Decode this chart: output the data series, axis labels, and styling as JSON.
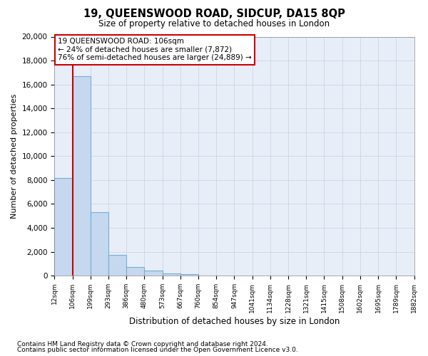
{
  "title1": "19, QUEENSWOOD ROAD, SIDCUP, DA15 8QP",
  "title2": "Size of property relative to detached houses in London",
  "xlabel": "Distribution of detached houses by size in London",
  "ylabel": "Number of detached properties",
  "footnote1": "Contains HM Land Registry data © Crown copyright and database right 2024.",
  "footnote2": "Contains public sector information licensed under the Open Government Licence v3.0.",
  "annotation_line1": "19 QUEENSWOOD ROAD: 106sqm",
  "annotation_line2": "← 24% of detached houses are smaller (7,872)",
  "annotation_line3": "76% of semi-detached houses are larger (24,889) →",
  "bar_heights": [
    8200,
    16700,
    5300,
    1750,
    750,
    400,
    200,
    100,
    0,
    0,
    0,
    0,
    0,
    0,
    0,
    0,
    0,
    0,
    0,
    0
  ],
  "bar_color": "#c5d8f0",
  "bar_edge_color": "#7aadd4",
  "vline_color": "#cc0000",
  "annotation_box_color": "#cc0000",
  "grid_color": "#d0d8e8",
  "background_color": "#ffffff",
  "ylim": [
    0,
    20000
  ],
  "yticks": [
    0,
    2000,
    4000,
    6000,
    8000,
    10000,
    12000,
    14000,
    16000,
    18000,
    20000
  ],
  "tick_labels": [
    "12sqm",
    "106sqm",
    "199sqm",
    "293sqm",
    "386sqm",
    "480sqm",
    "573sqm",
    "667sqm",
    "760sqm",
    "854sqm",
    "947sqm",
    "1041sqm",
    "1134sqm",
    "1228sqm",
    "1321sqm",
    "1415sqm",
    "1508sqm",
    "1602sqm",
    "1695sqm",
    "1789sqm",
    "1882sqm"
  ],
  "n_bars": 20,
  "vline_bar_index": 1
}
